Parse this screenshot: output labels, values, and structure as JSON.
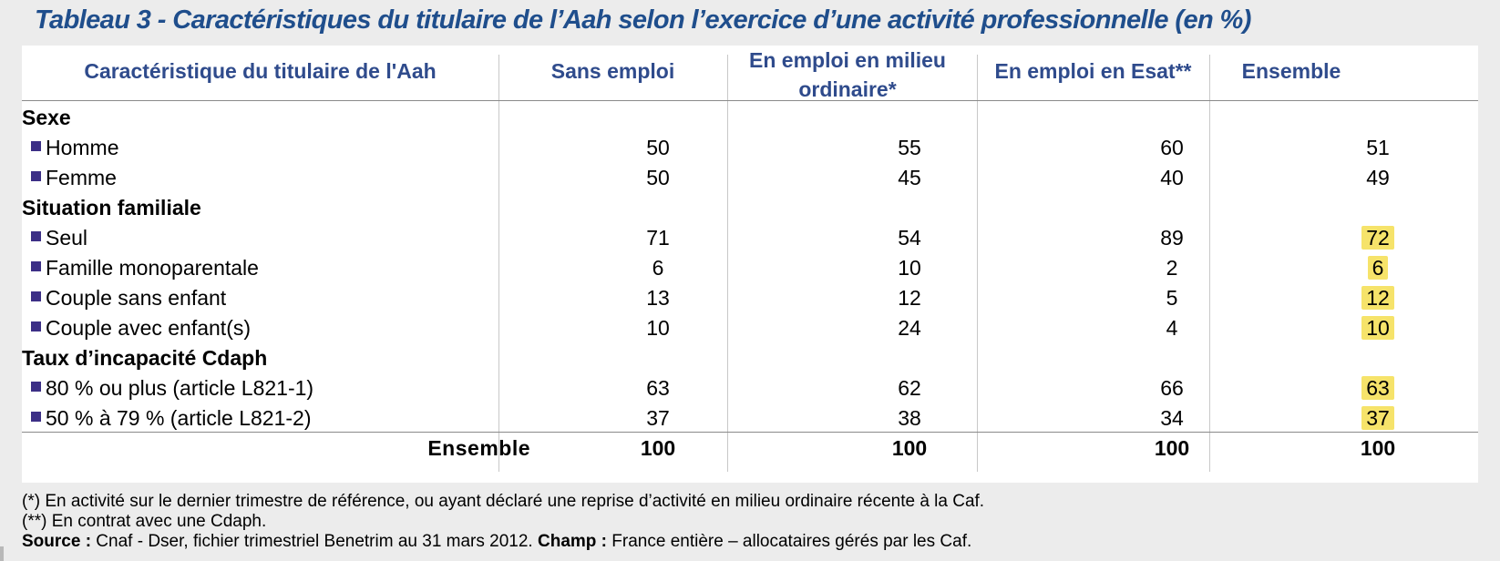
{
  "title": "Tableau 3 - Caractéristiques du titulaire de l’Aah selon l’exercice d’une activité professionnelle (en %)",
  "table": {
    "headers": [
      "Caractéristique du titulaire de l'Aah",
      "Sans emploi",
      "En emploi en milieu ordinaire*",
      "En emploi en Esat**",
      "Ensemble"
    ],
    "sections": [
      {
        "label": "Sexe",
        "rows": [
          {
            "label": "Homme",
            "values": [
              "50",
              "55",
              "60",
              "51"
            ]
          },
          {
            "label": "Femme",
            "values": [
              "50",
              "45",
              "40",
              "49"
            ]
          }
        ]
      },
      {
        "label": "Situation familiale",
        "rows": [
          {
            "label": "Seul",
            "values": [
              "71",
              "54",
              "89",
              "72"
            ]
          },
          {
            "label": "Famille monoparentale",
            "values": [
              "6",
              "10",
              "2",
              "6"
            ]
          },
          {
            "label": "Couple sans enfant",
            "values": [
              "13",
              "12",
              "5",
              "12"
            ]
          },
          {
            "label": "Couple avec enfant(s)",
            "values": [
              "10",
              "24",
              "4",
              "10"
            ]
          }
        ]
      },
      {
        "label": "Taux d’incapacité Cdaph",
        "rows": [
          {
            "label": "80 % ou plus (article L821-1)",
            "values": [
              "63",
              "62",
              "66",
              "63"
            ]
          },
          {
            "label": "50 % à 79 % (article L821-2)",
            "values": [
              "37",
              "38",
              "34",
              "37"
            ]
          }
        ]
      }
    ],
    "total": {
      "label": "Ensemble",
      "values": [
        "100",
        "100",
        "100",
        "100"
      ]
    }
  },
  "notes": {
    "note1_marker": "(*)",
    "note1": " En activité sur le dernier trimestre de référence, ou ayant déclaré une reprise d’activité en milieu ordinaire récente à la Caf.",
    "note2_marker": "(**)",
    "note2": " En contrat avec une Cdaph.",
    "source_label": "Source :",
    "source": " Cnaf - Dser, fichier trimestriel Benetrim au 31 mars 2012. ",
    "champ_label": "Champ :",
    "champ": " France entière – allocataires gérés par les Caf."
  },
  "colors": {
    "title": "#1f4e8c",
    "header": "#2f4b8c",
    "bullet": "#3c2f86",
    "highlight": "#f6e36a"
  }
}
